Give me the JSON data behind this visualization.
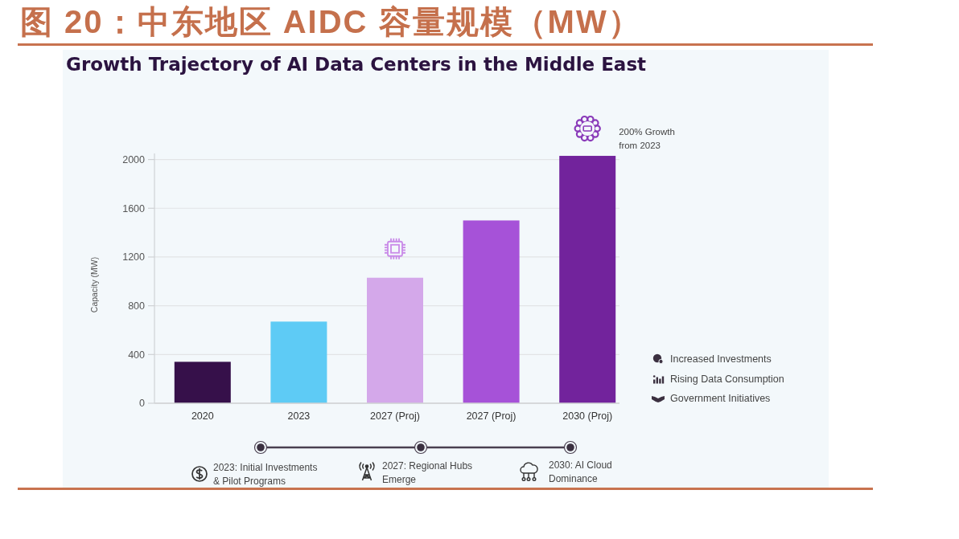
{
  "chart_data": {
    "type": "bar",
    "title": "图 20：中东地区 AIDC 容量规模（MW）",
    "subtitle": "Growth Trajectory of AI Data Centers in the Middle East",
    "ylabel": "Capacity (MW)",
    "categories": [
      "2020",
      "2023",
      "2027 (Proj)",
      "2027 (Proj)",
      "2030 (Proj)"
    ],
    "values": [
      340,
      670,
      1030,
      1500,
      2030
    ],
    "colors": [
      "#36104a",
      "#5ecbf5",
      "#d4a8ea",
      "#a652d8",
      "#72239c"
    ],
    "ylim": [
      0,
      2050
    ],
    "yticks": [
      0,
      400,
      800,
      1200,
      1600,
      2000
    ],
    "grid": "y",
    "annotations": [
      "200% Growth\nfrom 2023",
      "Increased Investments",
      "Rising Data Consumption",
      "Government Initiatives",
      "2023: Initial Investments\n& Pilot Programs",
      "2027: Regional Hubs\nEmerge",
      "2030: AI Cloud\nDominance"
    ]
  }
}
